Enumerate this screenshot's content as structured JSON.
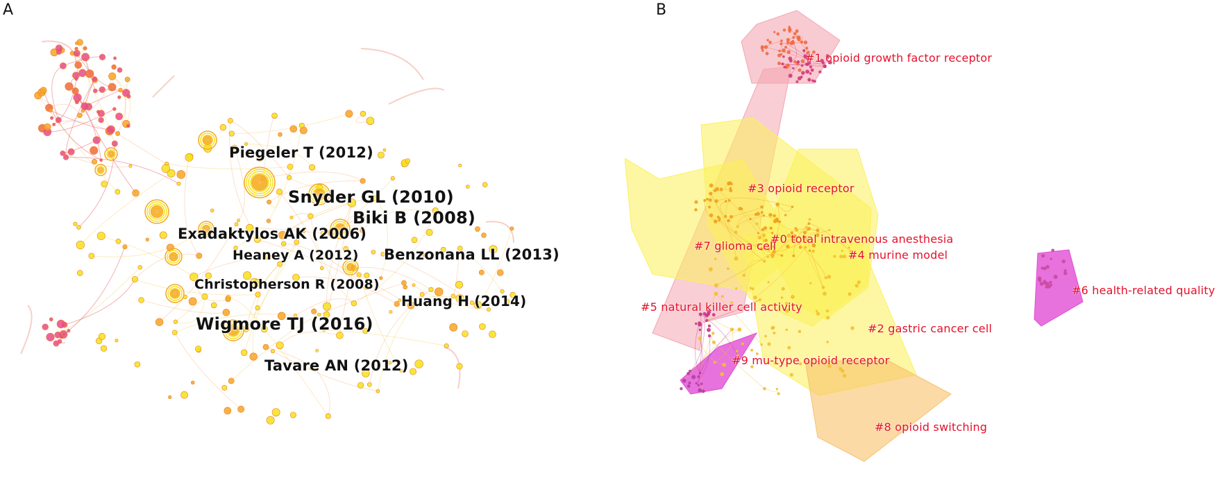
{
  "panel_a": {
    "letter": "A",
    "labels": [
      {
        "text": "Piegeler T (2012)",
        "size": "large"
      },
      {
        "text": "Snyder GL (2010)",
        "size": "xlarge"
      },
      {
        "text": "Biki B (2008)",
        "size": "xlarge"
      },
      {
        "text": "Exadaktylos AK (2006)",
        "size": "large"
      },
      {
        "text": "Heaney A (2012)",
        "size": "medium"
      },
      {
        "text": "Benzonana LL (2013)",
        "size": "large"
      },
      {
        "text": "Christopherson R (2008)",
        "size": "medium"
      },
      {
        "text": "Huang H (2014)",
        "size": "medium"
      },
      {
        "text": "Wigmore TJ (2016)",
        "size": "xlarge"
      },
      {
        "text": "Tavare AN (2012)",
        "size": "large"
      }
    ]
  },
  "panel_b": {
    "letter": "B",
    "clusters": [
      {
        "text": "#1 opioid growth factor receptor"
      },
      {
        "text": "#3 opioid receptor"
      },
      {
        "text": "#0 total intravenous anesthesia"
      },
      {
        "text": "#7 glioma cell"
      },
      {
        "text": "#4 murine model"
      },
      {
        "text": "#5 natural killer cell activity"
      },
      {
        "text": "#6 health-related quality"
      },
      {
        "text": "#2 gastric cancer cell"
      },
      {
        "text": "#9 mu-type opioid receptor"
      },
      {
        "text": "#8 opioid switching"
      }
    ]
  },
  "colors": {
    "yellow": "#f5e21a",
    "orange": "#f6a623",
    "red_orange": "#ee6b3a",
    "pink": "#e64b86",
    "magenta": "#e14ed4",
    "hull_pink": "#f4a6b3",
    "hull_orange": "#f8c26a",
    "hull_yellow": "#fbf15a",
    "label_red": "#e5102a"
  }
}
